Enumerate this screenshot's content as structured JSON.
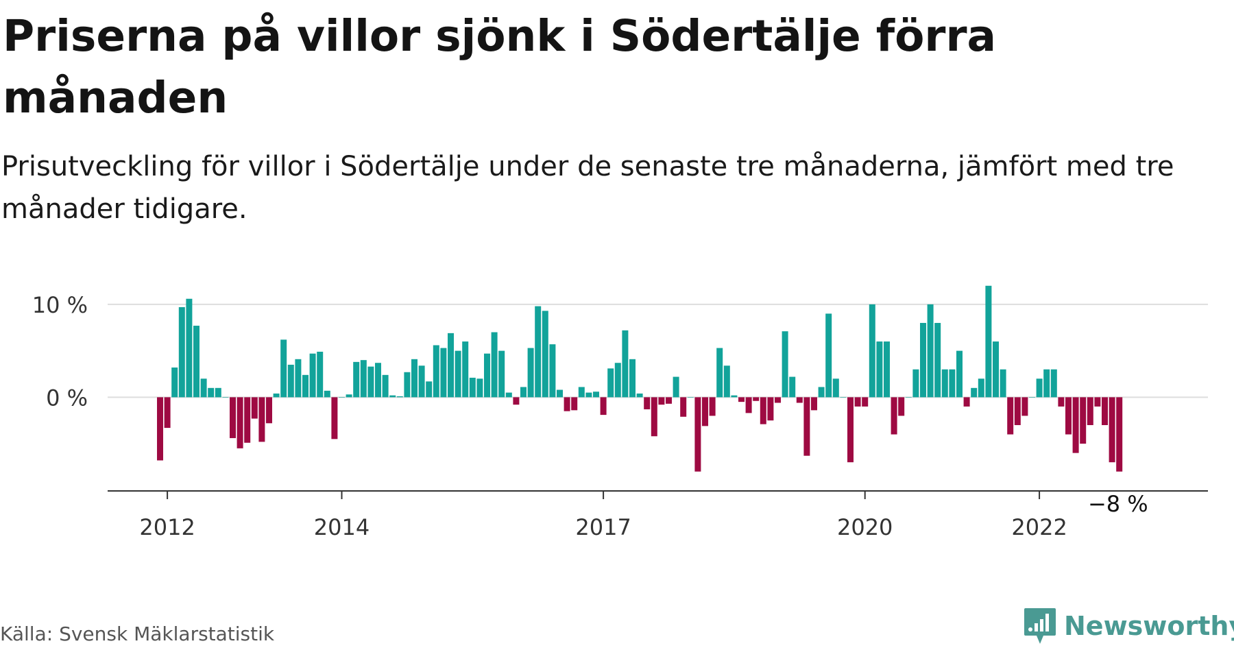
{
  "header": {
    "title": "Priserna på villor sjönk i Södertälje förra månaden",
    "subtitle": "Prisutveckling för villor i Södertälje under de senaste tre månaderna, jämfört med tre månader tidigare."
  },
  "footer": {
    "source": "Källa: Svensk Mäklarstatistik",
    "brand": "Newsworthy"
  },
  "colors": {
    "positive": "#12a39a",
    "negative": "#9e0a42",
    "grid": "#dddddd",
    "axis": "#333333",
    "brand": "#4a9a93"
  },
  "chart_data": {
    "type": "bar",
    "title": "Priserna på villor sjönk i Södertälje förra månaden",
    "subtitle": "Prisutveckling för villor i Södertälje under de senaste tre månaderna, jämfört med tre månader tidigare.",
    "x_start": "2011-12",
    "x_end": "2022-12",
    "x_ticks": [
      {
        "date": "2012-01",
        "label": "2012"
      },
      {
        "date": "2014-01",
        "label": "2014"
      },
      {
        "date": "2017-01",
        "label": "2017"
      },
      {
        "date": "2020-01",
        "label": "2020"
      },
      {
        "date": "2022-01",
        "label": "2022"
      }
    ],
    "y_ticks": [
      {
        "value": 0,
        "label": "0 %"
      },
      {
        "value": 10,
        "label": "10 %"
      }
    ],
    "ylim": [
      -9.2,
      12.5
    ],
    "grid": true,
    "end_label": "−8 %",
    "values": [
      -6.8,
      -3.3,
      3.2,
      9.7,
      10.6,
      7.7,
      2.0,
      1.0,
      1.0,
      0.0,
      -4.4,
      -5.5,
      -4.9,
      -2.3,
      -4.8,
      -2.8,
      0.4,
      6.2,
      3.5,
      4.1,
      2.4,
      4.7,
      4.9,
      0.7,
      -4.5,
      0.0,
      0.3,
      3.8,
      4.0,
      3.3,
      3.7,
      2.4,
      0.2,
      0.1,
      2.7,
      4.1,
      3.4,
      1.7,
      5.6,
      5.3,
      6.9,
      5.0,
      6.0,
      2.1,
      2.0,
      4.7,
      7.0,
      5.0,
      0.5,
      -0.8,
      1.1,
      5.3,
      9.8,
      9.3,
      5.7,
      0.8,
      -1.5,
      -1.4,
      1.1,
      0.5,
      0.6,
      -1.9,
      3.1,
      3.7,
      7.2,
      4.1,
      0.4,
      -1.3,
      -4.2,
      -0.8,
      -0.7,
      2.2,
      -2.1,
      0.0,
      -8.0,
      -3.1,
      -2.0,
      5.3,
      3.4,
      0.2,
      -0.5,
      -1.7,
      -0.4,
      -2.9,
      -2.5,
      -0.6,
      7.1,
      2.2,
      -0.6,
      -6.3,
      -1.4,
      1.1,
      9.0,
      2.0,
      0.0,
      -7.0,
      -1.0,
      -1.0,
      10.0,
      6.0,
      6.0,
      -4.0,
      -2.0,
      0.0,
      3.0,
      8.0,
      10.0,
      8.0,
      3.0,
      3.0,
      5.0,
      -1.0,
      1.0,
      2.0,
      12.0,
      6.0,
      3.0,
      -4.0,
      -3.0,
      -2.0,
      0.0,
      2.0,
      3.0,
      3.0,
      -1.0,
      -4.0,
      -6.0,
      -5.0,
      -3.0,
      -1.0,
      -3.0,
      -7.0,
      -8.0
    ]
  }
}
